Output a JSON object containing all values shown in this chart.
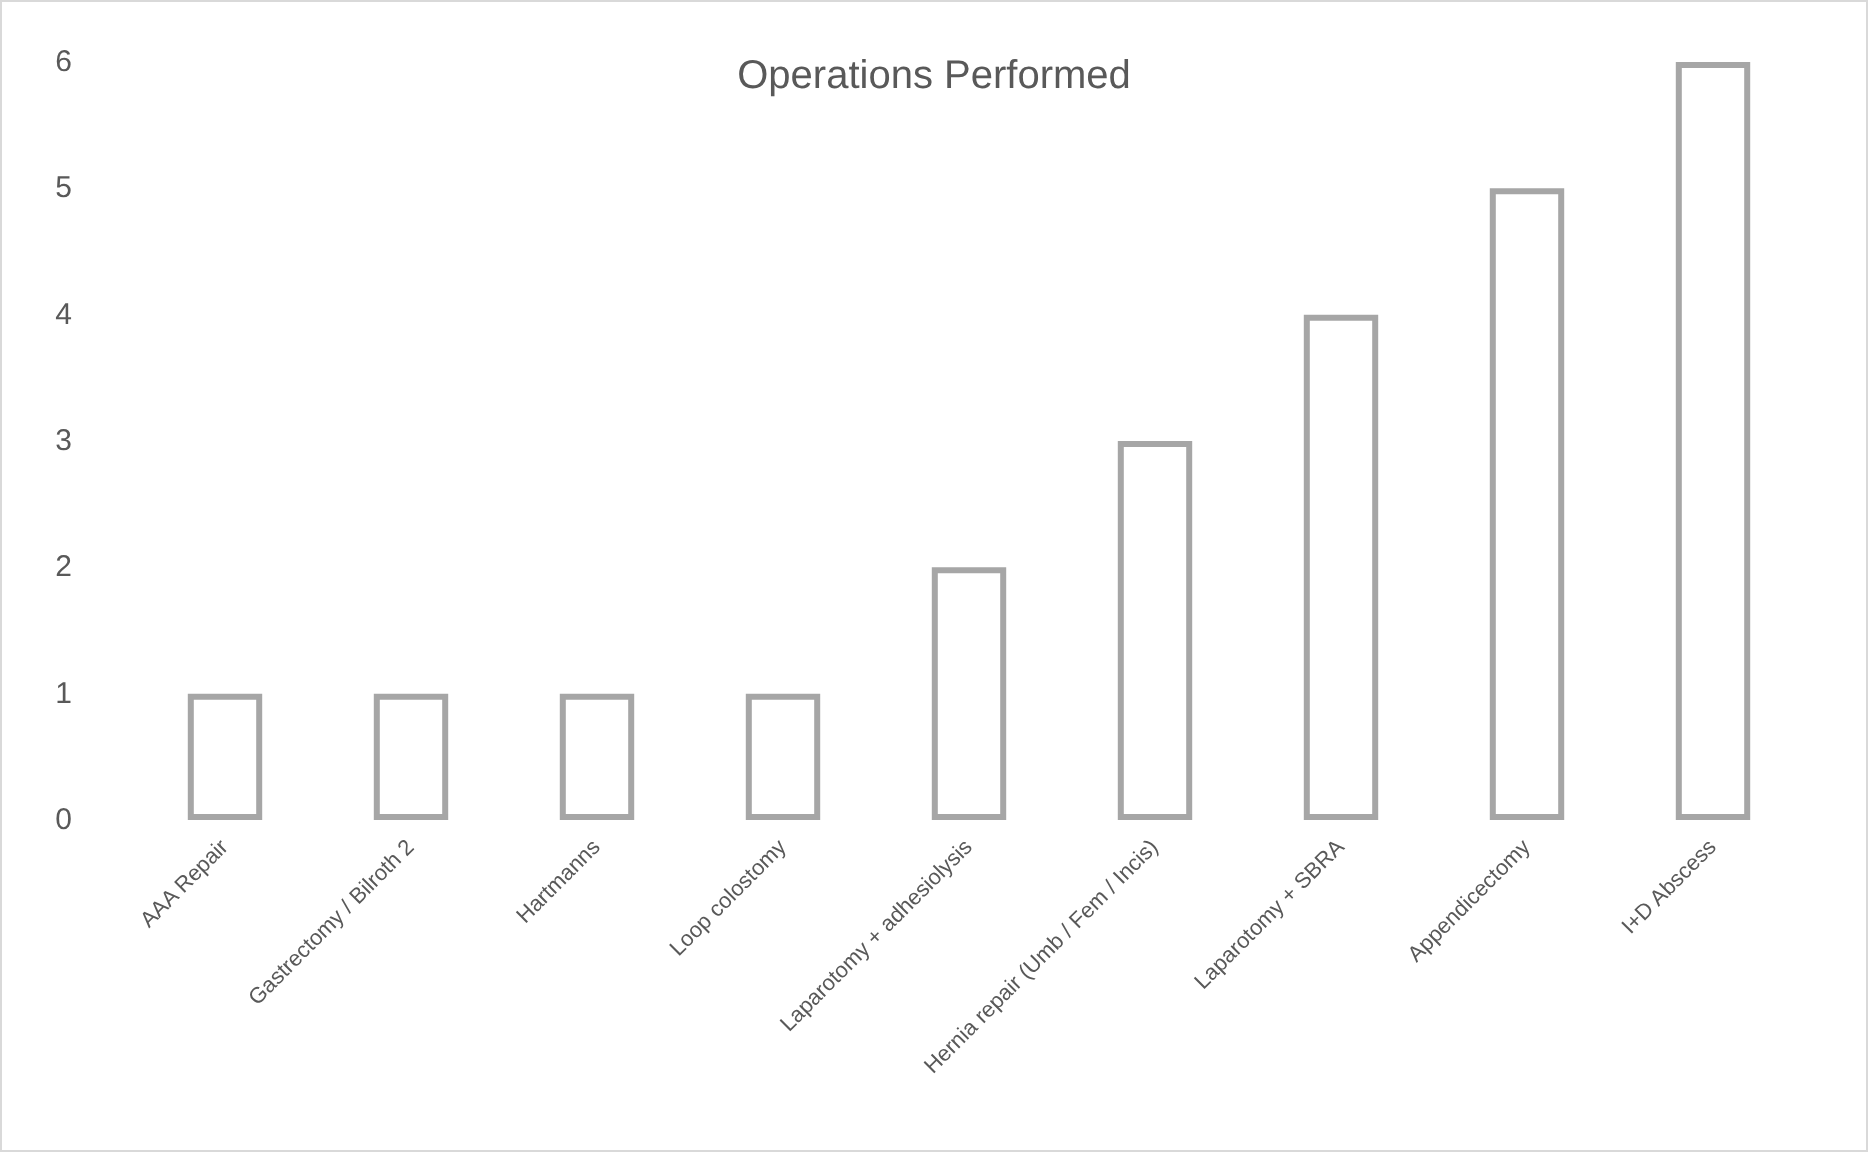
{
  "chart_data": {
    "type": "bar",
    "title": "Operations Performed",
    "categories": [
      "AAA Repair",
      "Gastrectomy / Bilroth 2",
      "Hartmanns",
      "Loop colostomy",
      "Laparotomy + adhesiolysis",
      "Hernia repair (Umb / Fem / Incis)",
      "Laparotomy + SBRA",
      "Appendicectomy",
      "I+D Abscess"
    ],
    "values": [
      1,
      1,
      1,
      1,
      2,
      3,
      4,
      5,
      6
    ],
    "color": "#a6a6a6",
    "ylim": [
      0,
      6
    ],
    "yticks": [
      0,
      1,
      2,
      3,
      4,
      5,
      6
    ],
    "grid": false
  }
}
